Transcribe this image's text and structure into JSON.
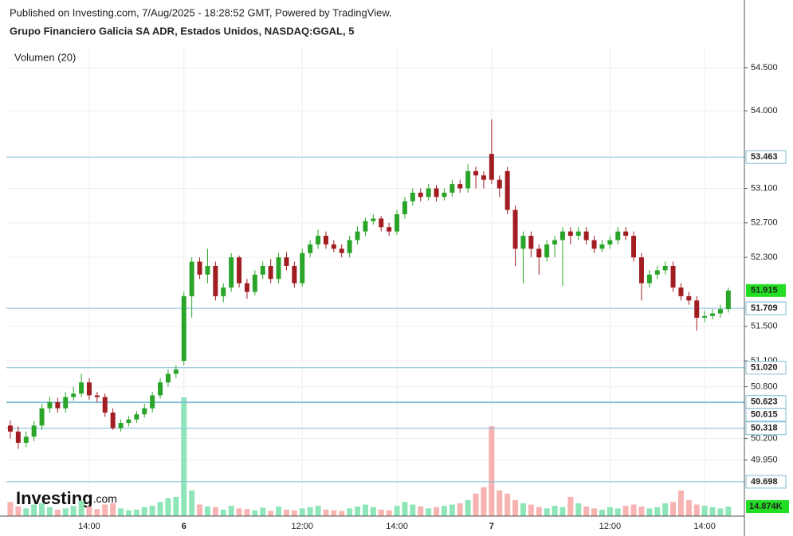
{
  "chart_data": {
    "type": "candlestick",
    "header": "Published on Investing.com, 7/Aug/2025 - 18:28:52 GMT, Powered by TradingView.",
    "title": "Grupo Financiero Galicia SA ADR, Estados Unidos, NASDAQ:GGAL, 5",
    "indicator_label": "Volumen (20)",
    "logo": "Investing",
    "logo_suffix": ".com",
    "categories": [
      null,
      null,
      null,
      null,
      null,
      null,
      null,
      null,
      null,
      null,
      "14:00",
      null,
      null,
      null,
      null,
      null,
      null,
      null,
      null,
      null,
      null,
      null,
      "6",
      null,
      null,
      null,
      null,
      null,
      null,
      null,
      null,
      null,
      null,
      null,
      null,
      null,
      null,
      "12:00",
      null,
      null,
      null,
      null,
      null,
      null,
      null,
      null,
      null,
      null,
      null,
      "14:00",
      null,
      null,
      null,
      null,
      null,
      null,
      null,
      null,
      null,
      null,
      null,
      "7",
      null,
      null,
      null,
      null,
      null,
      null,
      null,
      null,
      null,
      null,
      null,
      null,
      null,
      null,
      "12:00",
      null,
      null,
      null,
      null,
      null,
      null,
      null,
      null,
      null,
      null,
      null,
      "14:00",
      null,
      null,
      null
    ],
    "open": [
      50.35,
      50.28,
      50.15,
      50.22,
      50.35,
      50.55,
      50.62,
      50.55,
      50.68,
      50.72,
      50.85,
      50.7,
      50.68,
      50.5,
      50.32,
      50.38,
      50.42,
      50.48,
      50.55,
      50.7,
      50.85,
      50.95,
      51.1,
      51.85,
      52.25,
      52.1,
      52.2,
      51.85,
      51.95,
      52.3,
      52.0,
      51.9,
      52.1,
      52.2,
      52.05,
      52.3,
      52.2,
      52.0,
      52.35,
      52.45,
      52.55,
      52.45,
      52.4,
      52.35,
      52.5,
      52.6,
      52.72,
      52.75,
      52.65,
      52.6,
      52.8,
      52.95,
      53.05,
      53.0,
      53.1,
      53.0,
      53.05,
      53.15,
      53.1,
      53.3,
      53.25,
      53.5,
      53.2,
      53.3,
      52.85,
      52.4,
      52.55,
      52.4,
      52.3,
      52.45,
      52.5,
      52.6,
      52.55,
      52.6,
      52.5,
      52.4,
      52.45,
      52.5,
      52.6,
      52.55,
      52.3,
      52.0,
      52.1,
      52.15,
      52.2,
      51.95,
      51.85,
      51.8,
      51.6,
      51.62,
      51.65,
      51.7
    ],
    "high": [
      50.41,
      50.34,
      50.28,
      50.4,
      50.6,
      50.68,
      50.67,
      50.74,
      50.8,
      50.95,
      50.9,
      50.74,
      50.72,
      50.55,
      50.42,
      50.46,
      50.52,
      50.6,
      50.74,
      50.9,
      51.0,
      51.05,
      51.9,
      52.3,
      52.3,
      52.4,
      52.25,
      52.0,
      52.35,
      52.32,
      52.05,
      52.15,
      52.25,
      52.28,
      52.35,
      52.36,
      52.25,
      52.4,
      52.5,
      52.62,
      52.6,
      52.5,
      52.45,
      52.55,
      52.66,
      52.76,
      52.8,
      52.78,
      52.7,
      52.85,
      53.0,
      53.1,
      53.1,
      53.15,
      53.14,
      53.1,
      53.2,
      53.2,
      53.38,
      53.35,
      53.3,
      53.9,
      53.25,
      53.35,
      52.9,
      52.6,
      52.6,
      52.45,
      52.5,
      52.55,
      52.65,
      52.65,
      52.65,
      52.65,
      52.55,
      52.5,
      52.55,
      52.65,
      52.65,
      52.6,
      52.35,
      52.15,
      52.2,
      52.25,
      52.25,
      52.0,
      51.9,
      51.85,
      51.68,
      51.7,
      51.75,
      51.95
    ],
    "low": [
      50.2,
      50.08,
      50.1,
      50.17,
      50.3,
      50.5,
      50.5,
      50.5,
      50.64,
      50.68,
      50.65,
      50.62,
      50.45,
      50.3,
      50.28,
      50.34,
      50.38,
      50.44,
      50.5,
      50.66,
      50.8,
      50.9,
      51.05,
      51.6,
      52.05,
      52.0,
      51.8,
      51.78,
      51.9,
      51.95,
      51.82,
      51.86,
      52.05,
      52.0,
      52.0,
      52.15,
      51.95,
      51.96,
      52.3,
      52.4,
      52.4,
      52.36,
      52.3,
      52.3,
      52.45,
      52.55,
      52.68,
      52.6,
      52.55,
      52.56,
      52.75,
      52.9,
      52.95,
      52.96,
      52.95,
      52.96,
      53.0,
      53.05,
      53.05,
      53.1,
      53.1,
      53.15,
      53.0,
      52.8,
      52.2,
      52.0,
      52.3,
      52.1,
      52.25,
      52.3,
      51.97,
      52.45,
      52.5,
      52.45,
      52.35,
      52.36,
      52.4,
      52.45,
      52.5,
      52.25,
      51.8,
      51.95,
      52.05,
      52.1,
      51.9,
      51.8,
      51.75,
      51.45,
      51.55,
      51.58,
      51.6,
      51.66
    ],
    "close": [
      50.28,
      50.15,
      50.22,
      50.35,
      50.55,
      50.62,
      50.55,
      50.68,
      50.72,
      50.85,
      50.7,
      50.68,
      50.5,
      50.32,
      50.38,
      50.42,
      50.48,
      50.55,
      50.7,
      50.85,
      50.95,
      51.0,
      51.85,
      52.25,
      52.1,
      52.2,
      51.85,
      51.95,
      52.3,
      52.0,
      51.9,
      52.1,
      52.2,
      52.05,
      52.3,
      52.2,
      52.0,
      52.35,
      52.45,
      52.55,
      52.45,
      52.4,
      52.35,
      52.5,
      52.6,
      52.72,
      52.75,
      52.65,
      52.6,
      52.8,
      52.95,
      53.05,
      53.0,
      53.1,
      53.0,
      53.05,
      53.15,
      53.1,
      53.3,
      53.25,
      53.2,
      53.2,
      53.1,
      52.85,
      52.4,
      52.55,
      52.4,
      52.3,
      52.45,
      52.5,
      52.6,
      52.55,
      52.6,
      52.5,
      52.4,
      52.45,
      52.5,
      52.6,
      52.55,
      52.3,
      52.0,
      52.1,
      52.15,
      52.2,
      51.95,
      51.85,
      51.8,
      51.6,
      51.62,
      51.65,
      51.7,
      51.915
    ],
    "volume": [
      22000,
      15000,
      12000,
      18000,
      20000,
      14000,
      10000,
      12000,
      16000,
      24000,
      15000,
      11000,
      18000,
      20000,
      12000,
      9000,
      10000,
      14000,
      16000,
      22000,
      28000,
      30000,
      185000,
      40000,
      18000,
      15000,
      14000,
      10000,
      16000,
      12000,
      11000,
      9000,
      13000,
      8000,
      15000,
      10000,
      9000,
      12000,
      14000,
      16000,
      10000,
      9000,
      8000,
      12000,
      15000,
      18000,
      14000,
      10000,
      9000,
      16000,
      22000,
      18000,
      15000,
      12000,
      14000,
      16000,
      18000,
      20000,
      25000,
      35000,
      45000,
      140000,
      40000,
      35000,
      25000,
      20000,
      18000,
      14000,
      12000,
      16000,
      14000,
      30000,
      20000,
      15000,
      12000,
      10000,
      14000,
      12000,
      16000,
      18000,
      15000,
      12000,
      14000,
      20000,
      22000,
      40000,
      25000,
      18000,
      16000,
      14000,
      12000,
      14874
    ],
    "up_color": "#2aa52a",
    "down_color": "#a11d21",
    "volume_up_color": "#8ee6b8",
    "volume_down_color": "#f7b2b2",
    "ylim": [
      49.3,
      54.73
    ],
    "yticks": [
      {
        "value": 49.95,
        "label": "49.950"
      },
      {
        "value": 50.2,
        "label": "50.200"
      },
      {
        "value": 50.8,
        "label": "50.800"
      },
      {
        "value": 51.1,
        "label": "51.100"
      },
      {
        "value": 51.5,
        "label": "51.500"
      },
      {
        "value": 52.3,
        "label": "52.300"
      },
      {
        "value": 52.7,
        "label": "52.700"
      },
      {
        "value": 53.1,
        "label": "53.100"
      },
      {
        "value": 54.0,
        "label": "54.000"
      },
      {
        "value": 54.5,
        "label": "54.500"
      }
    ],
    "y2lim": [
      0,
      730000
    ],
    "grid": true,
    "price_line_color": "#7fbcd2",
    "price_lines": [
      {
        "value": 53.463,
        "label": "53.463"
      },
      {
        "value": 51.709,
        "label": "51.709"
      },
      {
        "value": 51.02,
        "label": "51.020"
      },
      {
        "value": 50.623,
        "label": "50.623"
      },
      {
        "value": 50.615,
        "label": "50.615"
      },
      {
        "value": 50.318,
        "label": "50.318"
      },
      {
        "value": 49.698,
        "label": "49.698"
      }
    ],
    "last_price": {
      "value": 51.915,
      "label": "51.915"
    },
    "last_volume": {
      "value": 14874,
      "label": "14.874K"
    },
    "last_label_color": "#22dd22"
  }
}
